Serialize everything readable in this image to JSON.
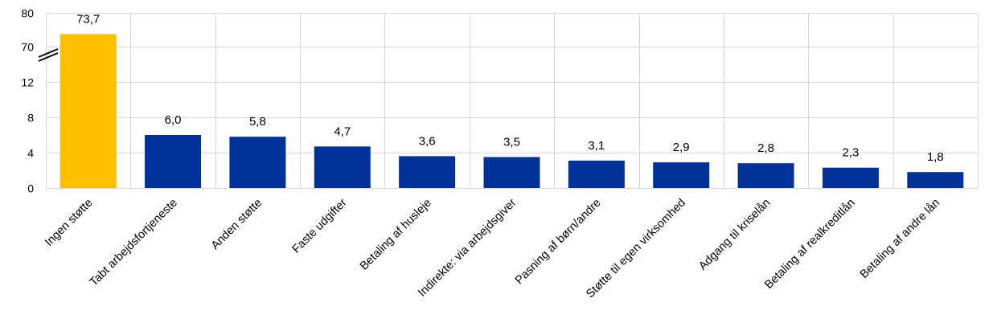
{
  "chart_data": {
    "type": "bar",
    "categories": [
      "Ingen støtte",
      "Tabt arbejdsfortjeneste",
      "Anden støtte",
      "Faste udgifter",
      "Betaling af husleje",
      "Indirekte: via arbejdsgiver",
      "Pasning af børn/andre",
      "Støtte til egen virksomhed",
      "Adgang til kriselån",
      "Betaling af realkreditlån",
      "Betaling af andre lån"
    ],
    "values": [
      73.7,
      6.0,
      5.8,
      4.7,
      3.6,
      3.5,
      3.1,
      2.9,
      2.8,
      2.3,
      1.8
    ],
    "value_labels": [
      "73,7",
      "6,0",
      "5,8",
      "4,7",
      "3,6",
      "3,5",
      "3,1",
      "2,9",
      "2,8",
      "2,3",
      "1,8"
    ],
    "y_ticks": [
      "0",
      "4",
      "8",
      "12",
      "70",
      "80"
    ],
    "y_axis": "broken axis: 0–12 then 70–80",
    "ylim": [
      0,
      80
    ],
    "grid": true,
    "colors": {
      "highlight": "#FFBF00",
      "default": "#003299",
      "grid": "#d9d9d9"
    },
    "highlight_index": 0
  }
}
